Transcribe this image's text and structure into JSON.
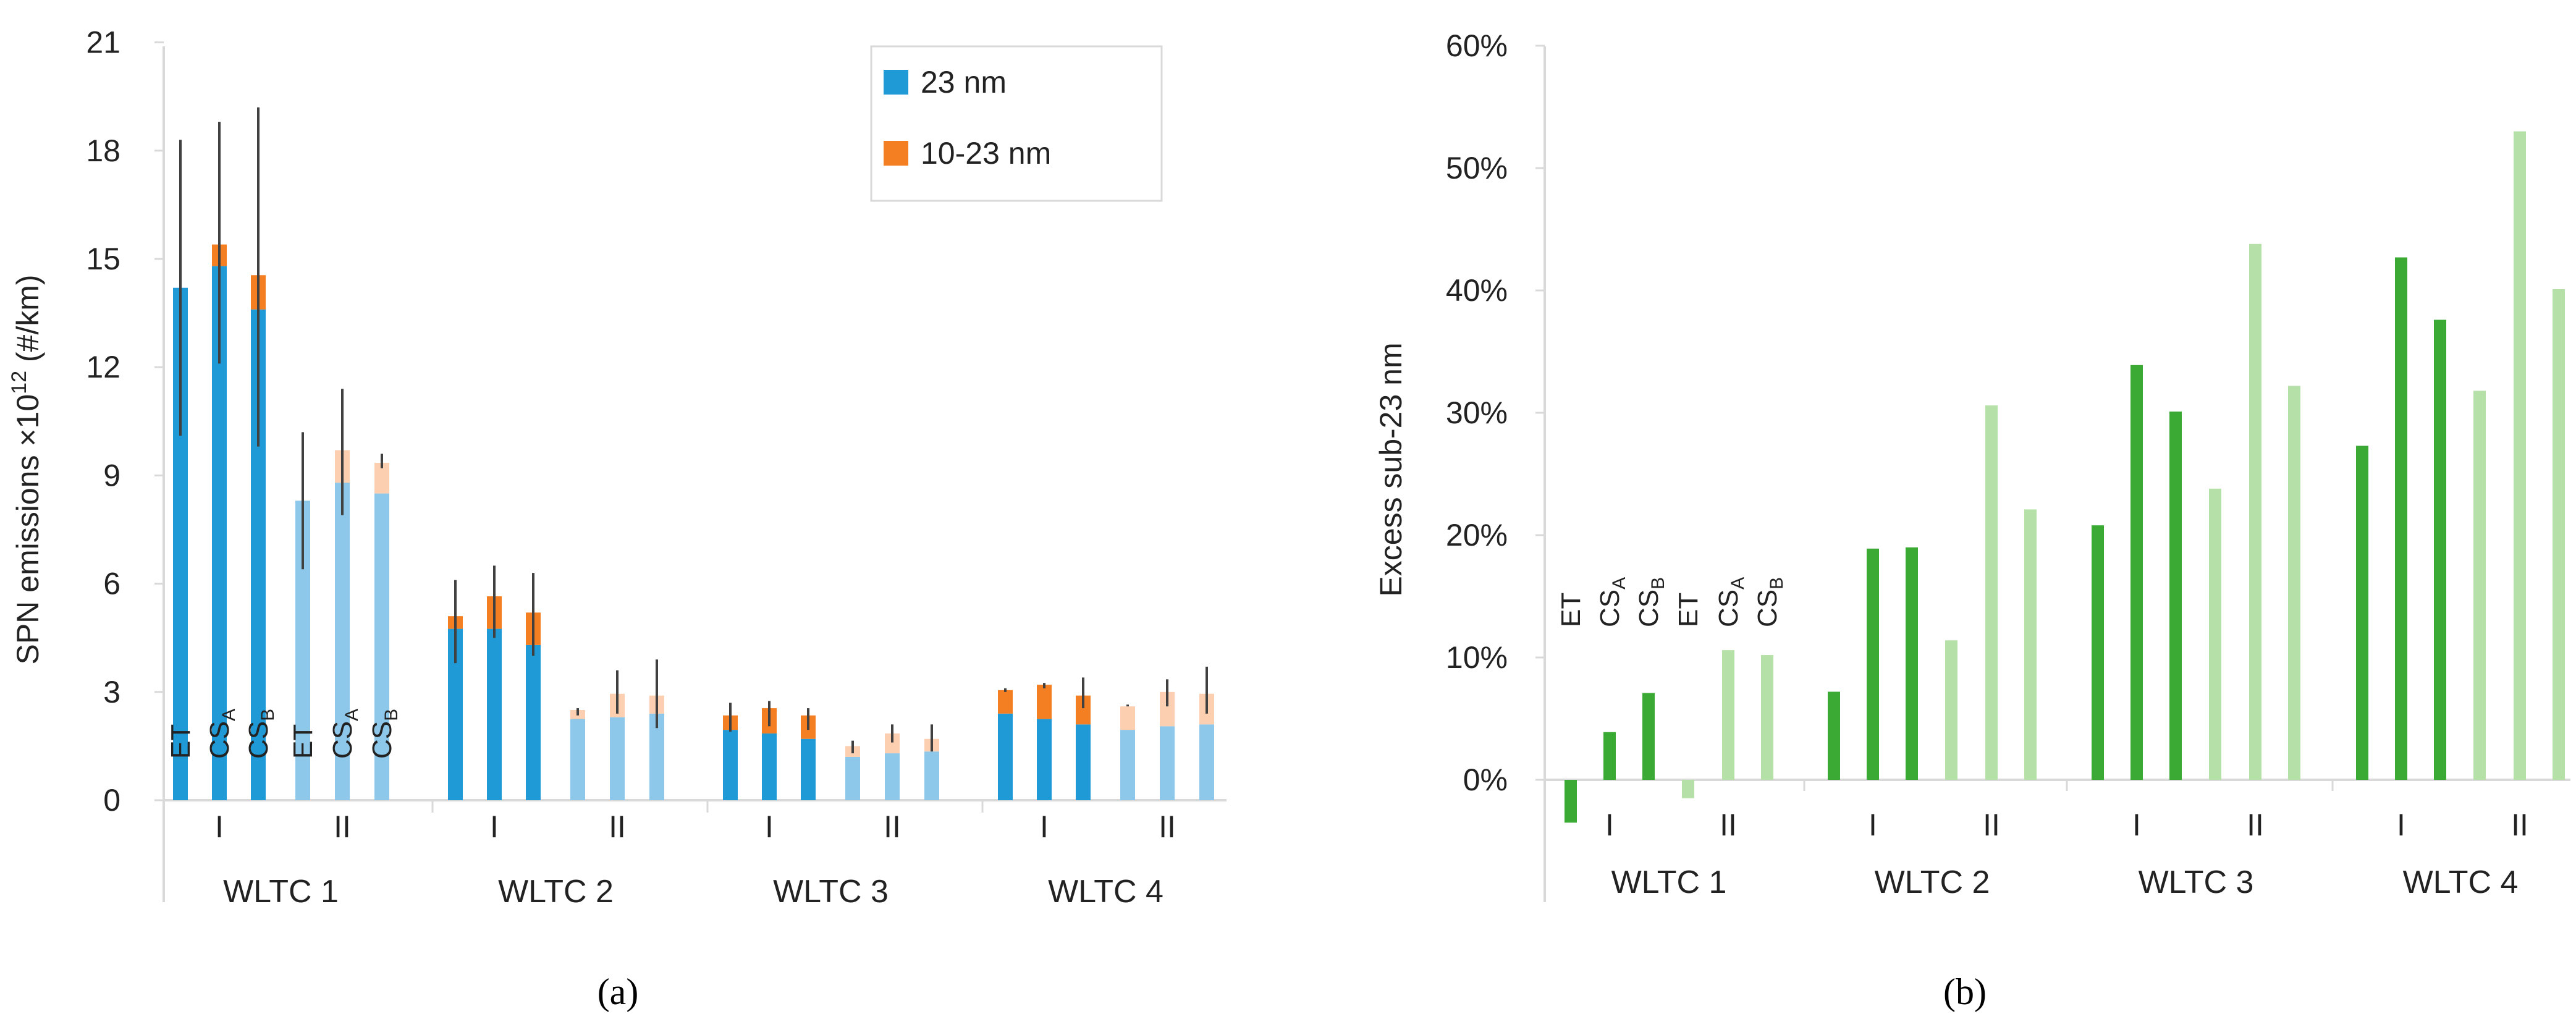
{
  "chart_data": [
    {
      "type": "bar",
      "stacked": true,
      "panel_caption": "(a)",
      "ylabel_main": "SPN emissions ×10",
      "ylabel_sup": "12",
      "ylabel_rest": " (#/km)",
      "ylim": [
        0,
        21
      ],
      "yticks": [
        "0",
        "3",
        "6",
        "9",
        "12",
        "15",
        "18",
        "21"
      ],
      "groups": [
        "WLTC 1",
        "WLTC 2",
        "WLTC 3",
        "WLTC 4"
      ],
      "subgroups": [
        "I",
        "II"
      ],
      "bar_labels": [
        "ET",
        "CS_A",
        "CS_B",
        "ET",
        "CS_A",
        "CS_B"
      ],
      "legend": [
        {
          "label": "23 nm",
          "color": "#1f9ad6"
        },
        {
          "label": "10-23 nm",
          "color": "#f47f22"
        }
      ],
      "series": [
        {
          "name": "23 nm",
          "values": [
            [
              14.2,
              14.8,
              13.6,
              8.3,
              8.8,
              8.5
            ],
            [
              4.75,
              4.75,
              4.3,
              2.25,
              2.3,
              2.4
            ],
            [
              1.95,
              1.85,
              1.7,
              1.2,
              1.3,
              1.35
            ],
            [
              2.4,
              2.25,
              2.1,
              1.95,
              2.05,
              2.1
            ]
          ]
        },
        {
          "name": "10-23 nm",
          "values": [
            [
              0.0,
              0.6,
              0.95,
              0.0,
              0.9,
              0.85
            ],
            [
              0.35,
              0.9,
              0.9,
              0.25,
              0.65,
              0.5
            ],
            [
              0.4,
              0.7,
              0.65,
              0.3,
              0.55,
              0.35
            ],
            [
              0.65,
              0.95,
              0.8,
              0.65,
              0.95,
              0.85
            ]
          ]
        }
      ],
      "error_bars": [
        [
          [
            10.1,
            18.3
          ],
          [
            12.1,
            18.8
          ],
          [
            9.8,
            19.2
          ],
          [
            6.4,
            10.2
          ],
          [
            7.9,
            11.4
          ],
          [
            9.2,
            9.6
          ]
        ],
        [
          [
            3.8,
            6.1
          ],
          [
            4.5,
            6.5
          ],
          [
            4.0,
            6.3
          ],
          [
            2.35,
            2.55
          ],
          [
            2.4,
            3.6
          ],
          [
            2.0,
            3.9
          ]
        ],
        [
          [
            1.9,
            2.7
          ],
          [
            2.05,
            2.75
          ],
          [
            1.95,
            2.55
          ],
          [
            1.3,
            1.65
          ],
          [
            1.6,
            2.1
          ],
          [
            1.35,
            2.1
          ]
        ],
        [
          [
            3.0,
            3.1
          ],
          [
            3.1,
            3.25
          ],
          [
            2.55,
            3.4
          ],
          [
            2.6,
            2.65
          ],
          [
            2.6,
            3.35
          ],
          [
            2.4,
            3.7
          ]
        ]
      ]
    },
    {
      "type": "bar",
      "panel_caption": "(b)",
      "ylabel": "Excess sub-23 nm",
      "ylim": [
        -0.1,
        0.6
      ],
      "yticks": [
        "0%",
        "10%",
        "20%",
        "30%",
        "40%",
        "50%",
        "60%"
      ],
      "groups": [
        "WLTC 1",
        "WLTC 2",
        "WLTC 3",
        "WLTC 4"
      ],
      "subgroups": [
        "I",
        "II"
      ],
      "bar_labels": [
        "ET",
        "CS_A",
        "CS_B",
        "ET",
        "CS_A",
        "CS_B"
      ],
      "colors": {
        "I": "#3aaa35",
        "II": "#b5e0a8"
      },
      "values": [
        [
          -0.035,
          0.039,
          0.071,
          -0.015,
          0.106,
          0.102
        ],
        [
          0.072,
          0.189,
          0.19,
          0.114,
          0.306,
          0.221
        ],
        [
          0.208,
          0.339,
          0.301,
          0.238,
          0.438,
          0.322
        ],
        [
          0.273,
          0.427,
          0.376,
          0.318,
          0.53,
          0.401
        ]
      ]
    }
  ]
}
